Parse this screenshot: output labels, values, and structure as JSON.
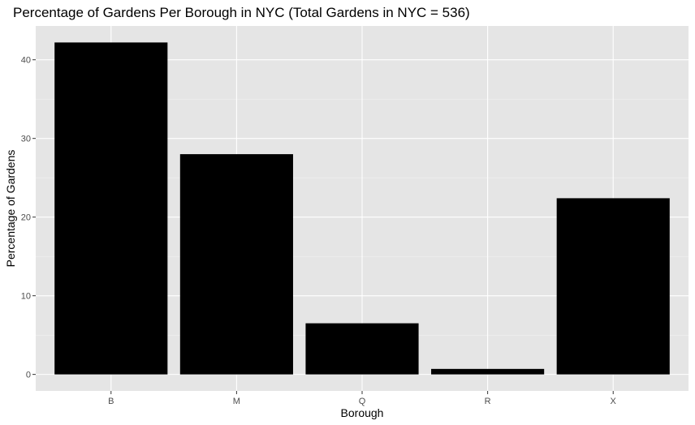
{
  "chart_data": {
    "type": "bar",
    "title": "Percentage of Gardens Per Borough in NYC (Total Gardens in NYC = 536)",
    "xlabel": "Borough",
    "ylabel": "Percentage of Gardens",
    "categories": [
      "B",
      "M",
      "Q",
      "R",
      "X"
    ],
    "values": [
      42.2,
      28.0,
      6.5,
      0.7,
      22.4
    ],
    "ylim": [
      -2.1,
      44.3
    ],
    "yticks": [
      0,
      10,
      20,
      30,
      40
    ],
    "ytick_labels": [
      "0",
      "10",
      "20",
      "30",
      "40"
    ],
    "grid": true,
    "colors": {
      "bar": "#000000",
      "panel": "#e5e5e5",
      "grid_major": "#ffffff",
      "grid_minor": "#f2f2f2"
    }
  }
}
